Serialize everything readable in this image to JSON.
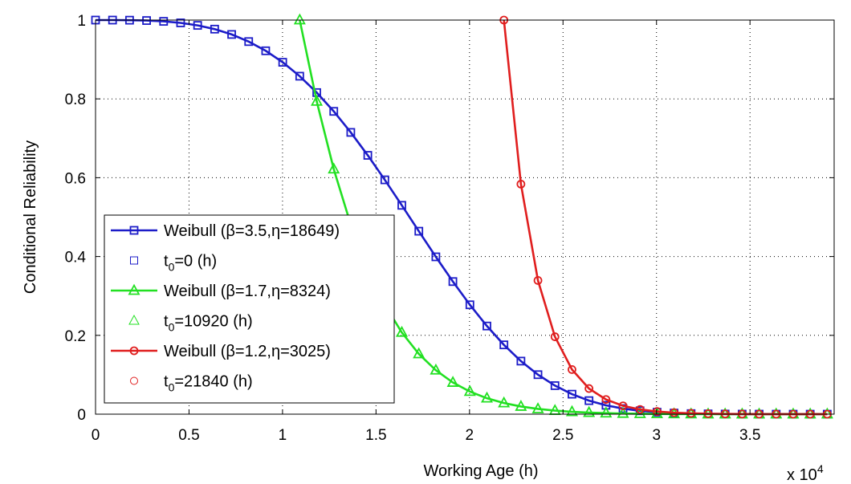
{
  "chart_data": {
    "type": "line",
    "xlabel": "Working Age (h)",
    "ylabel": "Conditional Reliability",
    "x_multiplier_label": "x 10",
    "x_multiplier_exponent": "4",
    "xlim": [
      0,
      39500
    ],
    "ylim": [
      0,
      1
    ],
    "x_ticks": [
      0,
      5000,
      10000,
      15000,
      20000,
      25000,
      30000,
      35000
    ],
    "x_tick_labels": [
      "0",
      "0.5",
      "1",
      "1.5",
      "2",
      "2.5",
      "3",
      "3.5"
    ],
    "y_ticks": [
      0,
      0.2,
      0.4,
      0.6,
      0.8,
      1
    ],
    "y_tick_labels": [
      "0",
      "0.2",
      "0.4",
      "0.6",
      "0.8",
      "1"
    ],
    "grid": true,
    "legend_position": "lower-left",
    "series": [
      {
        "name": "Weibull (β=3.5,η=18649)",
        "marker_name": "t0=0 (h)",
        "marker_main": "t",
        "marker_sub": "0",
        "marker_rest": "=0 (h)",
        "color": "#1c1cc8",
        "marker": "square",
        "beta": 3.5,
        "eta": 18649,
        "t0": 0
      },
      {
        "name": "Weibull (β=1.7,η=8324)",
        "marker_name": "t0=10920 (h)",
        "marker_main": "t",
        "marker_sub": "0",
        "marker_rest": "=10920 (h)",
        "color": "#22e022",
        "marker": "triangle",
        "beta": 1.7,
        "eta": 8324,
        "t0": 10920
      },
      {
        "name": "Weibull (β=1.2,η=3025)",
        "marker_name": "t0=21840 (h)",
        "marker_main": "t",
        "marker_sub": "0",
        "marker_rest": "=21840 (h)",
        "color": "#e01e1e",
        "marker": "circle",
        "beta": 1.2,
        "eta": 3025,
        "t0": 21840
      }
    ]
  }
}
